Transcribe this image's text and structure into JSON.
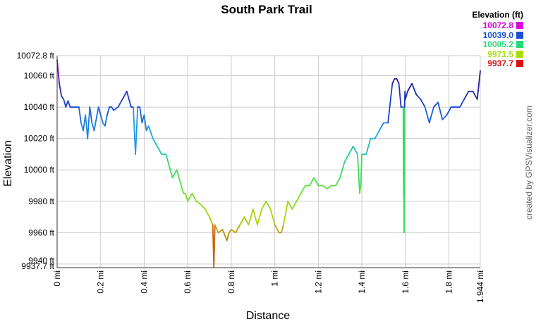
{
  "chart_data": {
    "type": "line",
    "title": "South Park Trail",
    "xlabel": "Distance",
    "ylabel": "Elevation",
    "xlim": [
      0,
      1.944
    ],
    "ylim": [
      9937.7,
      10072.8
    ],
    "x_ticks": [
      {
        "value": 0,
        "label": "0 mi"
      },
      {
        "value": 0.2,
        "label": "0.2 mi"
      },
      {
        "value": 0.4,
        "label": "0.4 mi"
      },
      {
        "value": 0.6,
        "label": "0.6 mi"
      },
      {
        "value": 0.8,
        "label": "0.8 mi"
      },
      {
        "value": 1.0,
        "label": "1 mi"
      },
      {
        "value": 1.2,
        "label": "1.2 mi"
      },
      {
        "value": 1.4,
        "label": "1.4 mi"
      },
      {
        "value": 1.6,
        "label": "1.6 mi"
      },
      {
        "value": 1.8,
        "label": "1.8 mi"
      },
      {
        "value": 1.944,
        "label": "1.944 mi"
      }
    ],
    "y_ticks": [
      {
        "value": 9937.7,
        "label": "9937.7 ft"
      },
      {
        "value": 9940,
        "label": "9940 ft"
      },
      {
        "value": 9960,
        "label": "9960 ft"
      },
      {
        "value": 9980,
        "label": "9980 ft"
      },
      {
        "value": 10000,
        "label": "10000 ft"
      },
      {
        "value": 10020,
        "label": "10020 ft"
      },
      {
        "value": 10040,
        "label": "10040 ft"
      },
      {
        "value": 10060,
        "label": "10060 ft"
      },
      {
        "value": 10072.8,
        "label": "10072.8 ft"
      }
    ],
    "grid": true,
    "legend": {
      "title": "Elevation (ft)",
      "position": "top-right",
      "items": [
        {
          "label": "10072.8",
          "color": "#dd00dd"
        },
        {
          "label": "10039.0",
          "color": "#1a4fd6"
        },
        {
          "label": "10005.2",
          "color": "#22dd77"
        },
        {
          "label": "9971.5",
          "color": "#aadd00"
        },
        {
          "label": "9937.7",
          "color": "#dd1111"
        }
      ]
    },
    "series": [
      {
        "color_by": "elevation",
        "x": [
          0.0,
          0.01,
          0.02,
          0.03,
          0.04,
          0.05,
          0.06,
          0.08,
          0.1,
          0.11,
          0.12,
          0.13,
          0.14,
          0.15,
          0.16,
          0.17,
          0.19,
          0.2,
          0.21,
          0.22,
          0.23,
          0.24,
          0.25,
          0.26,
          0.28,
          0.3,
          0.32,
          0.33,
          0.34,
          0.35,
          0.36,
          0.37,
          0.38,
          0.39,
          0.4,
          0.41,
          0.42,
          0.44,
          0.46,
          0.48,
          0.5,
          0.51,
          0.52,
          0.53,
          0.55,
          0.57,
          0.58,
          0.59,
          0.6,
          0.62,
          0.64,
          0.66,
          0.68,
          0.7,
          0.715,
          0.72,
          0.725,
          0.74,
          0.76,
          0.78,
          0.79,
          0.8,
          0.82,
          0.84,
          0.86,
          0.88,
          0.9,
          0.92,
          0.94,
          0.96,
          0.98,
          1.0,
          1.02,
          1.03,
          1.04,
          1.06,
          1.08,
          1.1,
          1.12,
          1.14,
          1.16,
          1.18,
          1.2,
          1.22,
          1.24,
          1.26,
          1.28,
          1.3,
          1.32,
          1.34,
          1.36,
          1.38,
          1.39,
          1.395,
          1.4,
          1.42,
          1.44,
          1.46,
          1.48,
          1.5,
          1.52,
          1.54,
          1.55,
          1.56,
          1.57,
          1.58,
          1.59,
          1.592,
          1.594,
          1.596,
          1.598,
          1.6,
          1.61,
          1.63,
          1.65,
          1.67,
          1.69,
          1.71,
          1.73,
          1.75,
          1.77,
          1.79,
          1.81,
          1.83,
          1.85,
          1.87,
          1.89,
          1.91,
          1.93,
          1.944
        ],
        "y": [
          10070,
          10055,
          10047,
          10045,
          10040,
          10044,
          10040,
          10040,
          10040,
          10030,
          10025,
          10035,
          10020,
          10040,
          10030,
          10025,
          10040,
          10035,
          10030,
          10028,
          10035,
          10040,
          10040,
          10038,
          10040,
          10045,
          10050,
          10045,
          10040,
          10040,
          10010,
          10040,
          10040,
          10030,
          10035,
          10025,
          10028,
          10020,
          10015,
          10010,
          10010,
          10005,
          10000,
          9995,
          10000,
          9990,
          9985,
          9985,
          9980,
          9985,
          9980,
          9978,
          9975,
          9970,
          9965,
          9938,
          9965,
          9960,
          9962,
          9955,
          9960,
          9962,
          9960,
          9965,
          9970,
          9965,
          9975,
          9965,
          9975,
          9980,
          9975,
          9965,
          9960,
          9960,
          9965,
          9980,
          9975,
          9980,
          9985,
          9990,
          9990,
          9995,
          9990,
          9990,
          9988,
          9990,
          9990,
          9995,
          10005,
          10010,
          10015,
          10010,
          9985,
          9990,
          10010,
          10010,
          10020,
          10020,
          10025,
          10030,
          10030,
          10055,
          10058,
          10058,
          10055,
          10040,
          10040,
          9983,
          9960,
          10040,
          10050,
          10045,
          10050,
          10055,
          10048,
          10045,
          10040,
          10030,
          10040,
          10043,
          10032,
          10035,
          10040,
          10040,
          10040,
          10045,
          10050,
          10050,
          10045,
          10063
        ]
      }
    ]
  },
  "credit": "created by GPSVisualizer.com"
}
